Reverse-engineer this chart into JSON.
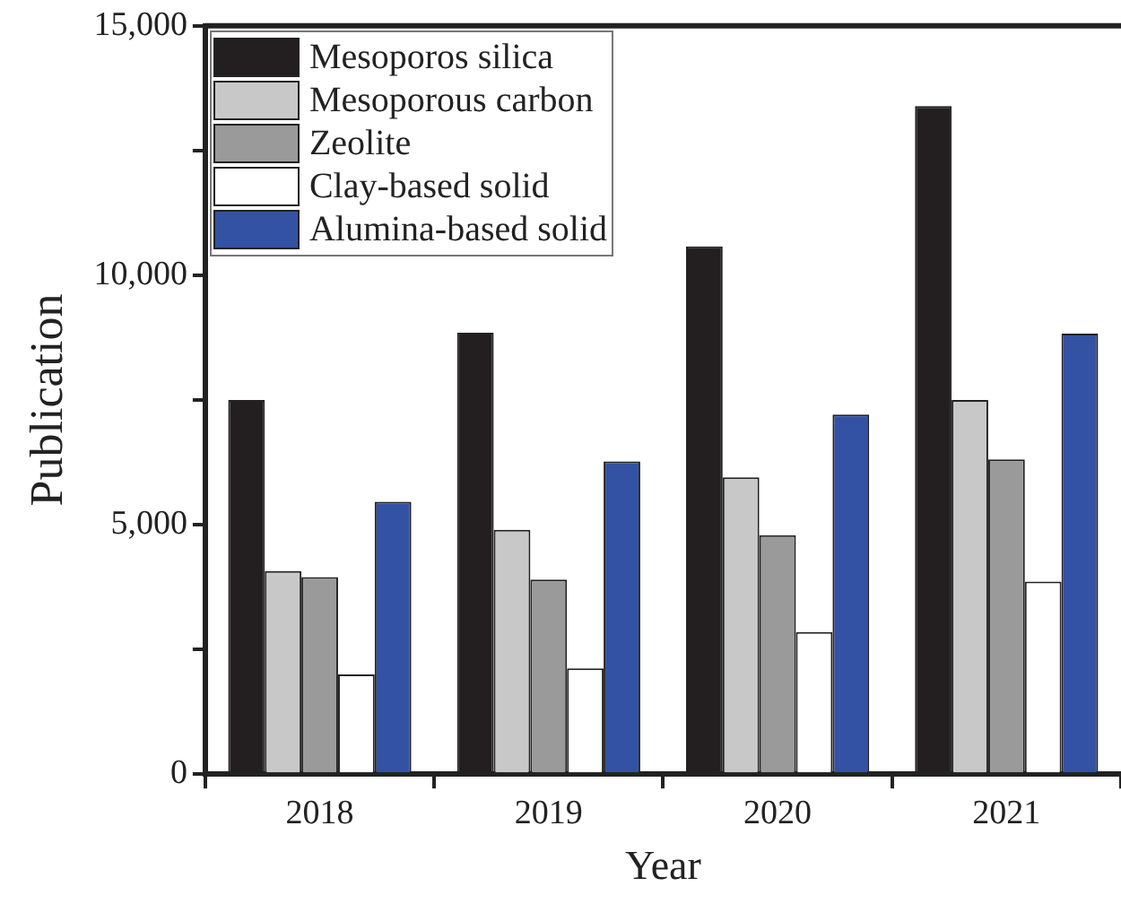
{
  "chart_data": {
    "type": "bar",
    "xlabel": "Year",
    "ylabel": "Publication",
    "categories": [
      "2018",
      "2019",
      "2020",
      "2021"
    ],
    "series": [
      {
        "name": "Mesoporos silica",
        "color": "#231f20",
        "values": [
          7500,
          8850,
          10580,
          13390
        ]
      },
      {
        "name": "Mesoporous carbon",
        "color": "#c8c8c8",
        "values": [
          4070,
          4900,
          5950,
          7500
        ]
      },
      {
        "name": "Zeolite",
        "color": "#9a9a9a",
        "values": [
          3950,
          3900,
          4790,
          6310
        ]
      },
      {
        "name": "Clay-based solid",
        "color": "#ffffff",
        "values": [
          2000,
          2120,
          2850,
          3860
        ]
      },
      {
        "name": "Alumina-based solid",
        "color": "#3352a3",
        "values": [
          5460,
          6270,
          7210,
          8830
        ]
      }
    ],
    "ylim": [
      0,
      15000
    ],
    "yticks": [
      0,
      {
        "value": 2500,
        "label": null
      },
      "5,000",
      {
        "value": 7500,
        "label": null
      },
      {
        "value": 10000,
        "label": "10,000"
      },
      {
        "value": 12500,
        "label": null
      },
      {
        "value": 15000,
        "label": "15,000"
      }
    ],
    "grid": false,
    "legend": "top left"
  }
}
